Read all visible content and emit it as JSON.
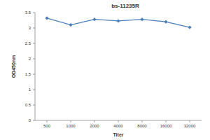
{
  "chart_data": {
    "type": "line",
    "title": "bs-11235R",
    "x_label": "Titer",
    "y_label": "OD450nm",
    "categories": [
      "500",
      "1000",
      "2000",
      "4000",
      "8000",
      "16000",
      "32000"
    ],
    "values": [
      3.32,
      3.1,
      3.28,
      3.23,
      3.28,
      3.2,
      3.02
    ],
    "color": "#4a7ebb",
    "marker": "diamond",
    "line_style": "solid",
    "ylim": [
      0,
      3.5
    ],
    "yticks": [
      0,
      0.5,
      1,
      1.5,
      2,
      2.5,
      3,
      3.5
    ],
    "grid": false
  }
}
